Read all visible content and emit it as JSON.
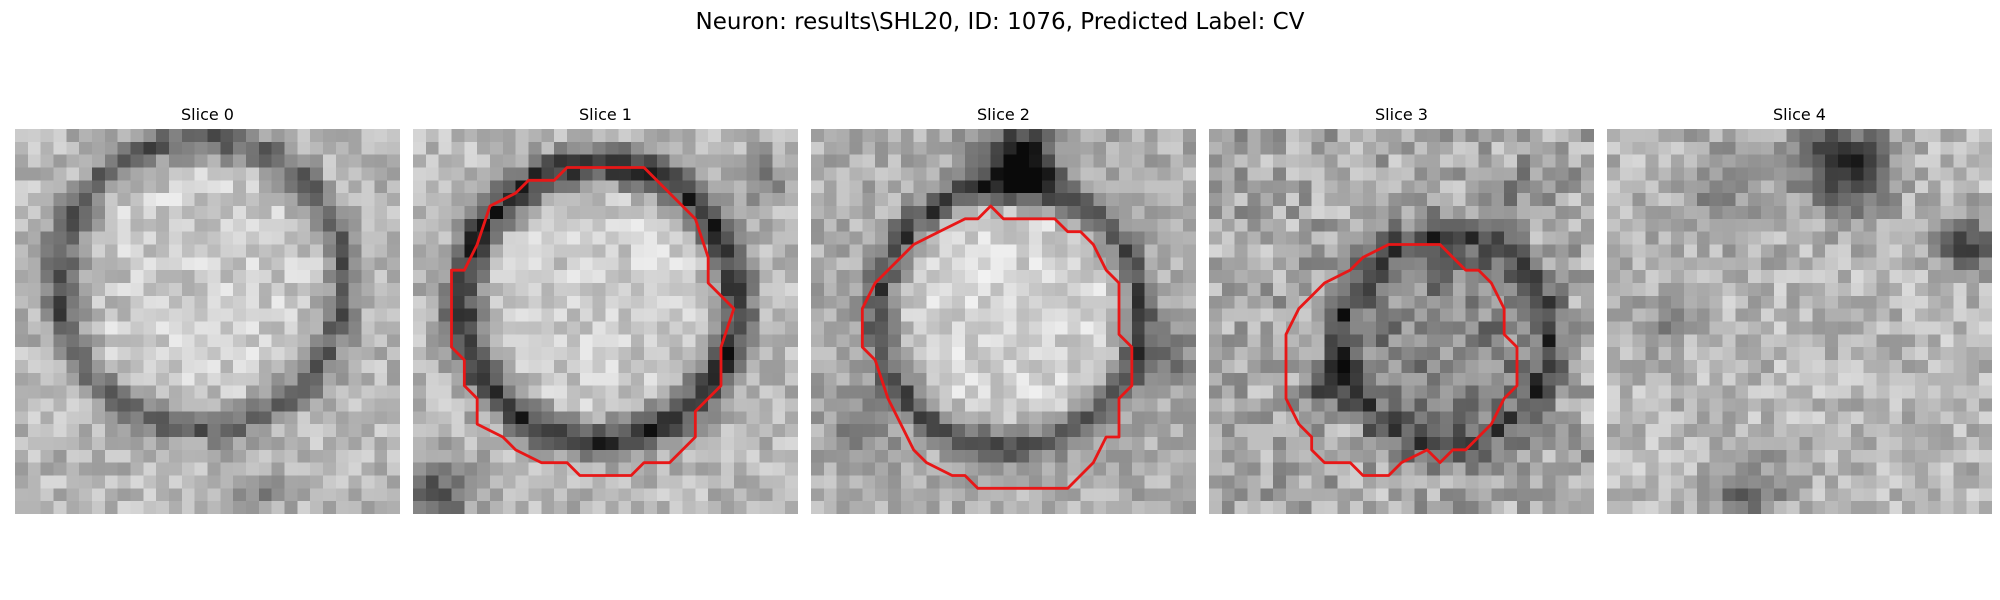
{
  "figure": {
    "title": "Neuron: results\\SHL20, ID: 1076, Predicted Label: CV",
    "grid_n": 30,
    "colormap": "gray",
    "outline_color": "#e81717",
    "panels": [
      {
        "title": "Slice 0",
        "has_outline": false
      },
      {
        "title": "Slice 1",
        "has_outline": true
      },
      {
        "title": "Slice 2",
        "has_outline": true
      },
      {
        "title": "Slice 3",
        "has_outline": true
      },
      {
        "title": "Slice 4",
        "has_outline": false
      }
    ]
  }
}
